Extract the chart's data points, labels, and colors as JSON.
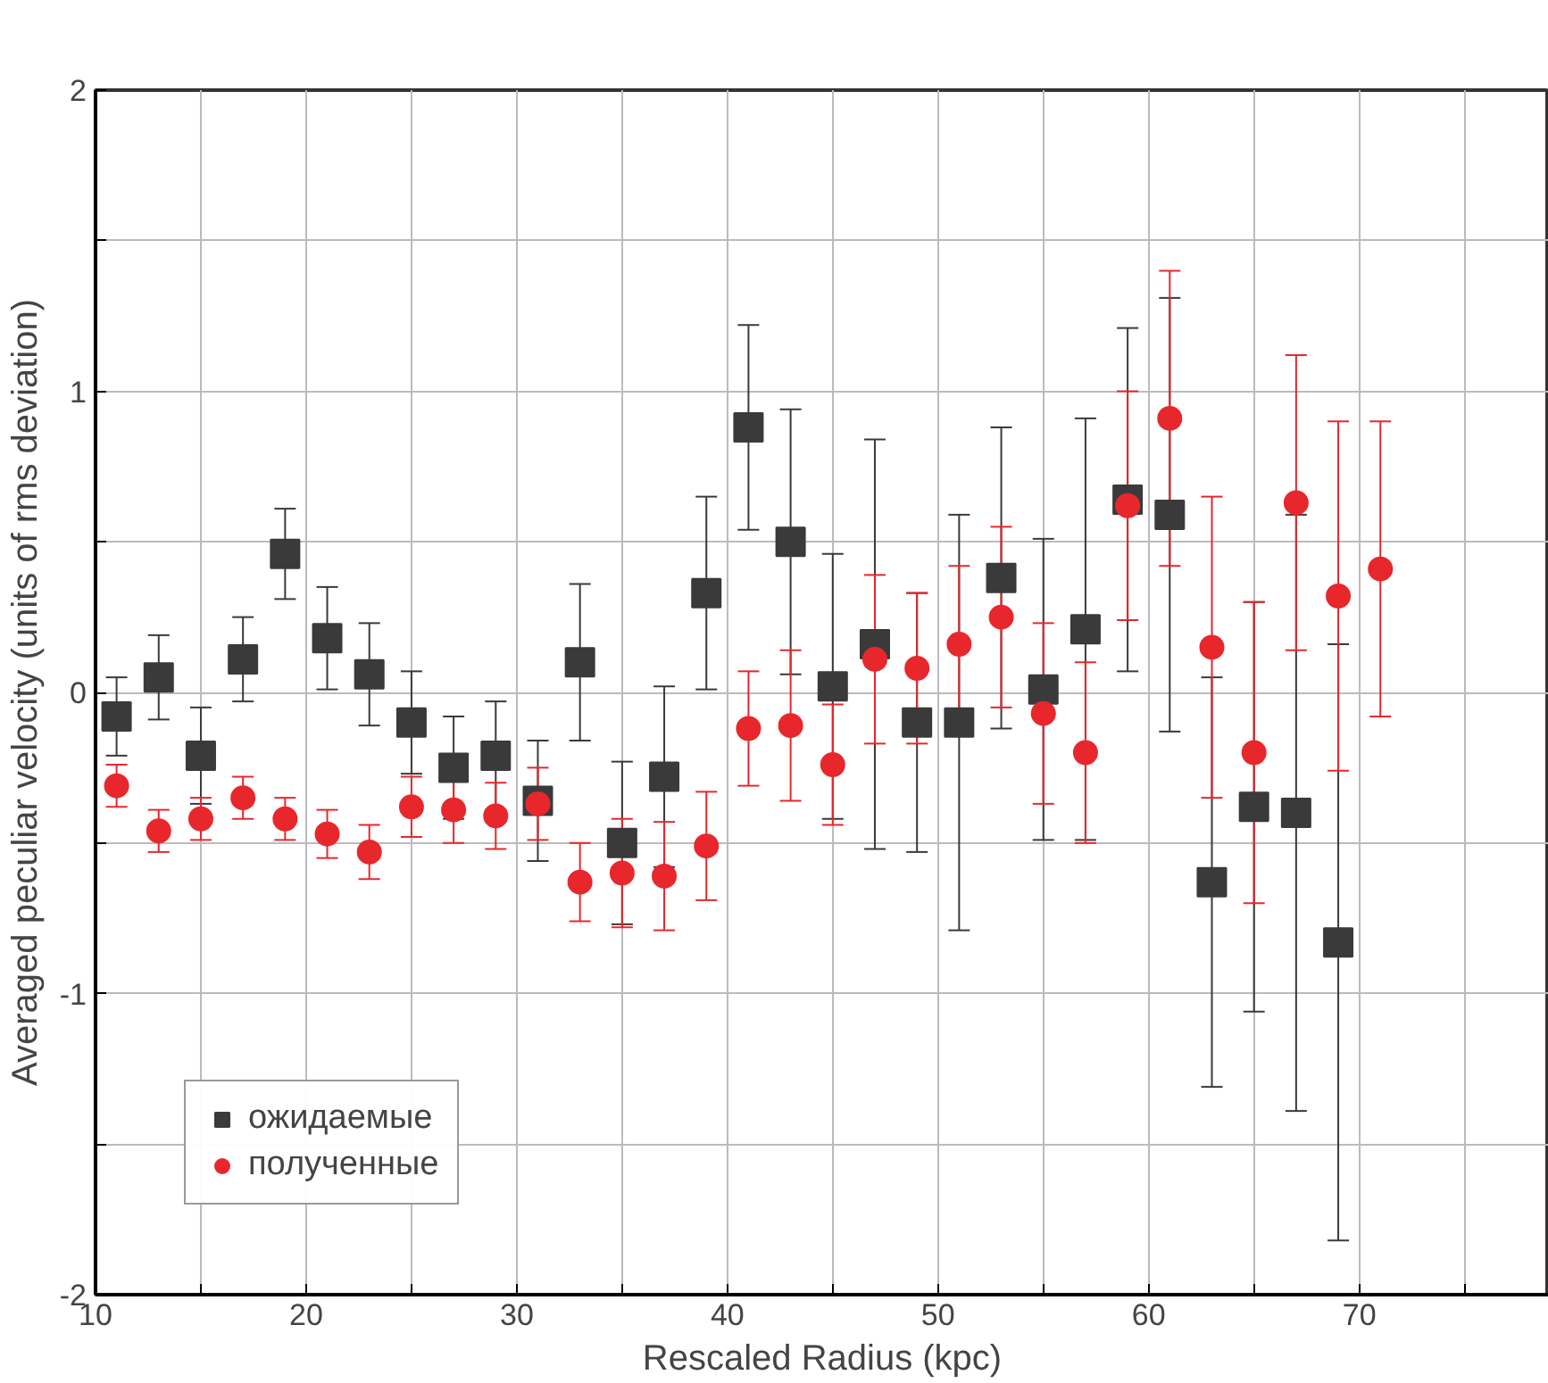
{
  "chart_data": {
    "type": "scatter",
    "xlabel": "Rescaled Radius (kpc)",
    "ylabel": "Averaged peculiar velocity (units of rms deviation)",
    "xlim": [
      10,
      79
    ],
    "ylim": [
      -2,
      2
    ],
    "xticks": [
      10,
      {
        "value": 15,
        "label": null
      },
      20,
      {
        "value": 25,
        "label": null
      },
      30,
      {
        "value": 35,
        "label": null
      },
      40,
      {
        "value": 45,
        "label": null
      },
      50,
      {
        "value": 55,
        "label": null
      },
      60,
      {
        "value": 65,
        "label": null
      },
      70,
      {
        "value": 75,
        "label": null
      }
    ],
    "yticks": [
      -2,
      {
        "value": -1.5,
        "label": null
      },
      -1,
      {
        "value": -0.5,
        "label": null
      },
      0,
      {
        "value": 0.5,
        "label": null
      },
      1,
      {
        "value": 1.5,
        "label": null
      },
      2
    ],
    "grid": true,
    "legend": "bottom left",
    "series": [
      {
        "name": "ожидаемые",
        "color": "#3a3a3a",
        "marker": "square",
        "x": [
          11,
          13,
          15,
          17,
          19,
          21,
          23,
          25,
          27,
          29,
          31,
          33,
          35,
          37,
          39,
          41,
          43,
          45,
          47,
          49,
          51,
          53,
          55,
          57,
          59,
          61,
          63,
          65,
          67,
          69
        ],
        "values": [
          -0.08,
          0.05,
          -0.21,
          0.11,
          0.46,
          0.18,
          0.06,
          -0.1,
          -0.25,
          -0.21,
          -0.36,
          0.1,
          -0.5,
          -0.28,
          0.33,
          0.88,
          0.5,
          0.02,
          0.16,
          -0.1,
          -0.1,
          0.38,
          0.01,
          0.21,
          0.64,
          0.59,
          -0.63,
          -0.38,
          -0.4,
          -0.83
        ],
        "errors": [
          0.13,
          0.14,
          0.16,
          0.14,
          0.15,
          0.17,
          0.17,
          0.17,
          0.17,
          0.18,
          0.2,
          0.26,
          0.27,
          0.3,
          0.32,
          0.34,
          0.44,
          0.44,
          0.68,
          0.43,
          0.69,
          0.5,
          0.5,
          0.7,
          0.57,
          0.72,
          0.68,
          0.68,
          0.99,
          0.99
        ]
      },
      {
        "name": "полученные",
        "color": "#e8272c",
        "marker": "circle",
        "x": [
          11,
          13,
          15,
          17,
          19,
          21,
          23,
          25,
          27,
          29,
          31,
          33,
          35,
          37,
          39,
          41,
          43,
          45,
          47,
          49,
          51,
          53,
          55,
          57,
          59,
          61,
          63,
          65,
          67,
          69,
          71
        ],
        "values": [
          -0.31,
          -0.46,
          -0.42,
          -0.35,
          -0.42,
          -0.47,
          -0.53,
          -0.38,
          -0.39,
          -0.41,
          -0.37,
          -0.63,
          -0.6,
          -0.61,
          -0.51,
          -0.12,
          -0.11,
          -0.24,
          0.11,
          0.08,
          0.16,
          0.25,
          -0.07,
          -0.2,
          0.62,
          0.91,
          0.15,
          -0.2,
          0.63,
          0.32,
          0.41
        ],
        "errors": [
          0.07,
          0.07,
          0.07,
          0.07,
          0.07,
          0.08,
          0.09,
          0.1,
          0.11,
          0.11,
          0.12,
          0.13,
          0.18,
          0.18,
          0.18,
          0.19,
          0.25,
          0.2,
          0.28,
          0.25,
          0.26,
          0.3,
          0.3,
          0.3,
          0.38,
          0.49,
          0.5,
          0.5,
          0.49,
          0.58,
          0.49
        ]
      }
    ]
  }
}
